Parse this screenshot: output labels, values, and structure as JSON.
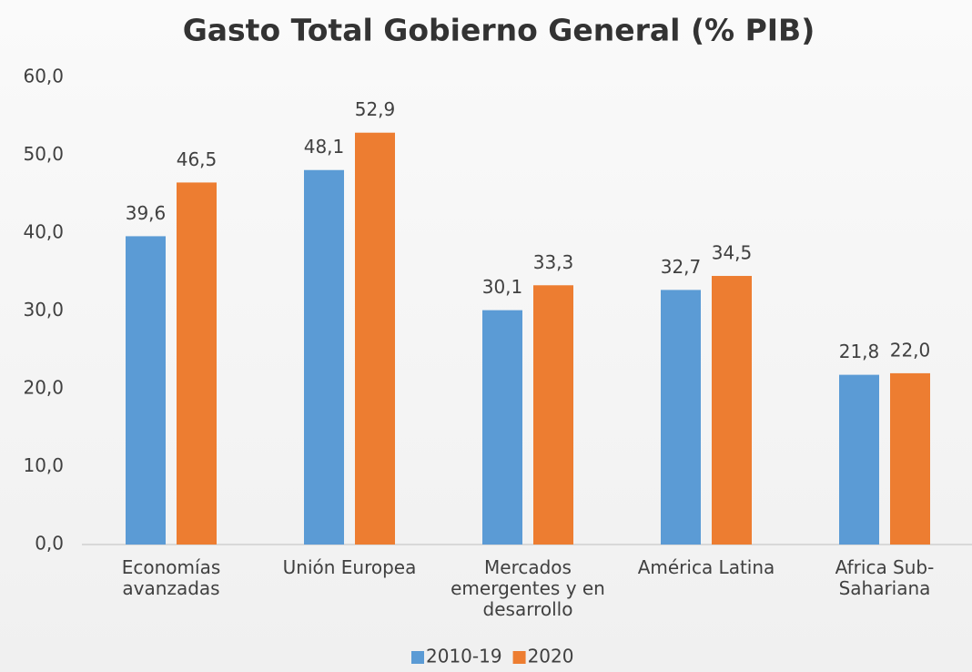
{
  "chart_data": {
    "type": "bar",
    "title": "Gasto Total Gobierno General (% PIB)",
    "categories": [
      "Economías avanzadas",
      "Unión Europea",
      "Mercados emergentes y en desarrollo",
      "América Latina",
      "Africa Sub-Sahariana"
    ],
    "series": [
      {
        "name": "2010-19",
        "color": "#5b9bd5",
        "values": [
          39.6,
          48.1,
          30.1,
          32.7,
          21.8
        ],
        "value_labels": [
          "39,6",
          "48,1",
          "30,1",
          "32,7",
          "21,8"
        ]
      },
      {
        "name": "2020",
        "color": "#ed7d31",
        "values": [
          46.5,
          52.9,
          33.3,
          34.5,
          22.0
        ],
        "value_labels": [
          "46,5",
          "52,9",
          "33,3",
          "34,5",
          "22,0"
        ]
      }
    ],
    "ylim": [
      0,
      60
    ],
    "yticks": [
      {
        "value": 0,
        "label": "0,0"
      },
      {
        "value": 10,
        "label": "10,0"
      },
      {
        "value": 20,
        "label": "20,0"
      },
      {
        "value": 30,
        "label": "30,0"
      },
      {
        "value": 40,
        "label": "40,0"
      },
      {
        "value": 50,
        "label": "50,0"
      },
      {
        "value": 60,
        "label": "60,0"
      }
    ],
    "grid": false,
    "legend": "bottom"
  }
}
